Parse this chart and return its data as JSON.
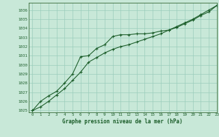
{
  "title": "Graphe pression niveau de la mer (hPa)",
  "background_color": "#c8e8d8",
  "grid_color": "#99ccbb",
  "line_color": "#1a5c28",
  "spine_color": "#336633",
  "xlim": [
    -0.5,
    23
  ],
  "ylim": [
    1024.8,
    1036.8
  ],
  "xticks": [
    0,
    1,
    2,
    3,
    4,
    5,
    6,
    7,
    8,
    9,
    10,
    11,
    12,
    13,
    14,
    15,
    16,
    17,
    18,
    19,
    20,
    21,
    22,
    23
  ],
  "yticks": [
    1025,
    1026,
    1027,
    1028,
    1029,
    1030,
    1031,
    1032,
    1033,
    1034,
    1035,
    1036
  ],
  "series1_x": [
    0,
    1,
    2,
    3,
    4,
    5,
    6,
    7,
    8,
    9,
    10,
    11,
    12,
    13,
    14,
    15,
    16,
    17,
    18,
    19,
    20,
    21,
    22,
    23
  ],
  "series1_y": [
    1025.0,
    1026.0,
    1026.6,
    1027.1,
    1028.0,
    1029.0,
    1030.9,
    1031.0,
    1031.8,
    1032.2,
    1033.1,
    1033.3,
    1033.3,
    1033.4,
    1033.4,
    1033.5,
    1033.7,
    1033.8,
    1034.1,
    1034.5,
    1034.9,
    1035.4,
    1035.8,
    1036.5
  ],
  "series2_x": [
    0,
    1,
    2,
    3,
    4,
    5,
    6,
    7,
    8,
    9,
    10,
    11,
    12,
    13,
    14,
    15,
    16,
    17,
    18,
    19,
    20,
    21,
    22,
    23
  ],
  "series2_y": [
    1025.0,
    1025.4,
    1026.0,
    1026.7,
    1027.4,
    1028.3,
    1029.2,
    1030.3,
    1030.8,
    1031.3,
    1031.7,
    1032.0,
    1032.2,
    1032.5,
    1032.8,
    1033.1,
    1033.4,
    1033.8,
    1034.2,
    1034.6,
    1035.0,
    1035.5,
    1036.0,
    1036.5
  ]
}
